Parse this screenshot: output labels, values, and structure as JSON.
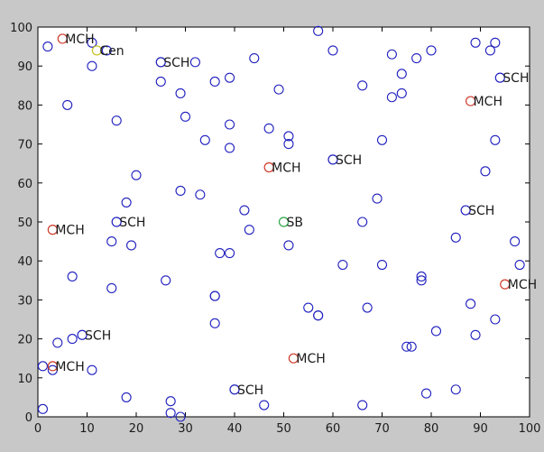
{
  "chart_data": {
    "type": "scatter",
    "title": "",
    "xlabel": "",
    "ylabel": "",
    "xlim": [
      0,
      100
    ],
    "ylim": [
      0,
      100
    ],
    "x_ticks": [
      "0",
      "10",
      "20",
      "30",
      "40",
      "50",
      "60",
      "70",
      "80",
      "90",
      "100"
    ],
    "y_ticks": [
      "0",
      "10",
      "20",
      "30",
      "40",
      "50",
      "60",
      "70",
      "80",
      "90",
      "100"
    ],
    "grid": false,
    "legend": "none",
    "colors": {
      "plain": "#1f1fbf",
      "mch": "#d03a2a",
      "sb": "#2aa84a",
      "center": "#c8c020",
      "axis": "#000000",
      "text": "#1a1a1a"
    },
    "series": [
      {
        "kind": "plain",
        "points": [
          [
            2,
            95
          ],
          [
            11,
            96
          ],
          [
            14,
            94
          ],
          [
            11,
            90
          ],
          [
            6,
            80
          ],
          [
            32,
            91
          ],
          [
            25,
            86
          ],
          [
            29,
            83
          ],
          [
            36,
            86
          ],
          [
            39,
            87
          ],
          [
            44,
            92
          ],
          [
            49,
            84
          ],
          [
            57,
            99
          ],
          [
            60,
            94
          ],
          [
            66,
            85
          ],
          [
            72,
            93
          ],
          [
            77,
            92
          ],
          [
            80,
            94
          ],
          [
            89,
            96
          ],
          [
            93,
            96
          ],
          [
            92,
            94
          ],
          [
            72,
            82
          ],
          [
            74,
            83
          ],
          [
            74,
            88
          ],
          [
            16,
            76
          ],
          [
            30,
            77
          ],
          [
            34,
            71
          ],
          [
            39,
            75
          ],
          [
            39,
            69
          ],
          [
            47,
            74
          ],
          [
            51,
            72
          ],
          [
            51,
            70
          ],
          [
            70,
            71
          ],
          [
            93,
            71
          ],
          [
            91,
            63
          ],
          [
            20,
            62
          ],
          [
            29,
            58
          ],
          [
            33,
            57
          ],
          [
            18,
            55
          ],
          [
            69,
            56
          ],
          [
            42,
            53
          ],
          [
            66,
            50
          ],
          [
            43,
            48
          ],
          [
            15,
            45
          ],
          [
            19,
            44
          ],
          [
            51,
            44
          ],
          [
            85,
            46
          ],
          [
            97,
            45
          ],
          [
            37,
            42
          ],
          [
            39,
            42
          ],
          [
            62,
            39
          ],
          [
            70,
            39
          ],
          [
            98,
            39
          ],
          [
            7,
            36
          ],
          [
            26,
            35
          ],
          [
            78,
            36
          ],
          [
            78,
            35
          ],
          [
            15,
            33
          ],
          [
            36,
            31
          ],
          [
            36,
            31
          ],
          [
            55,
            28
          ],
          [
            57,
            26
          ],
          [
            57,
            26
          ],
          [
            67,
            28
          ],
          [
            88,
            29
          ],
          [
            36,
            24
          ],
          [
            93,
            25
          ],
          [
            4,
            19
          ],
          [
            7,
            20
          ],
          [
            75,
            18
          ],
          [
            76,
            18
          ],
          [
            81,
            22
          ],
          [
            89,
            21
          ],
          [
            1,
            13
          ],
          [
            3,
            12
          ],
          [
            11,
            12
          ],
          [
            18,
            5
          ],
          [
            27,
            4
          ],
          [
            27,
            1
          ],
          [
            29,
            0
          ],
          [
            46,
            3
          ],
          [
            66,
            3
          ],
          [
            79,
            6
          ],
          [
            85,
            7
          ],
          [
            1,
            2
          ]
        ]
      },
      {
        "kind": "labeled",
        "points": [
          {
            "x": 5,
            "y": 97,
            "marker": "mch",
            "label": "MCH"
          },
          {
            "x": 12,
            "y": 94,
            "marker": "center",
            "label": "Cen"
          },
          {
            "x": 25,
            "y": 91,
            "marker": "plain",
            "label": "SCH"
          },
          {
            "x": 94,
            "y": 87,
            "marker": "plain",
            "label": "SCH"
          },
          {
            "x": 88,
            "y": 81,
            "marker": "mch",
            "label": "MCH"
          },
          {
            "x": 47,
            "y": 64,
            "marker": "mch",
            "label": "MCH"
          },
          {
            "x": 60,
            "y": 66,
            "marker": "plain",
            "label": "SCH"
          },
          {
            "x": 87,
            "y": 53,
            "marker": "plain",
            "label": "SCH"
          },
          {
            "x": 50,
            "y": 50,
            "marker": "sb",
            "label": "SB"
          },
          {
            "x": 16,
            "y": 50,
            "marker": "plain",
            "label": "SCH"
          },
          {
            "x": 3,
            "y": 48,
            "marker": "mch",
            "label": "MCH"
          },
          {
            "x": 95,
            "y": 34,
            "marker": "mch",
            "label": "MCH"
          },
          {
            "x": 9,
            "y": 21,
            "marker": "plain",
            "label": "SCH"
          },
          {
            "x": 3,
            "y": 13,
            "marker": "mch",
            "label": "MCH"
          },
          {
            "x": 52,
            "y": 15,
            "marker": "mch",
            "label": "MCH"
          },
          {
            "x": 40,
            "y": 7,
            "marker": "plain",
            "label": "SCH"
          }
        ]
      }
    ]
  }
}
